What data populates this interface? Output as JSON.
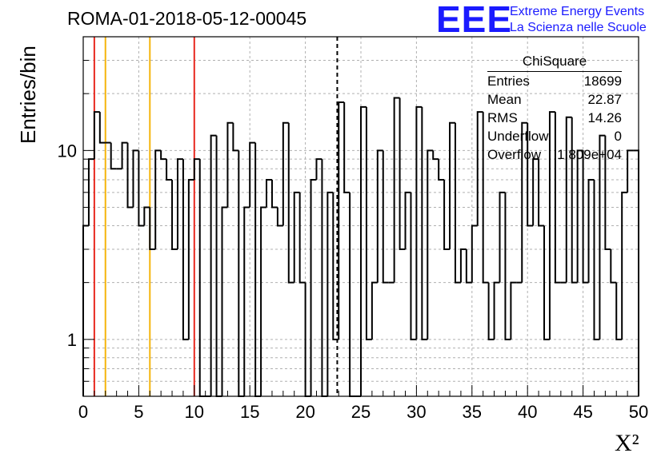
{
  "header": {
    "title": "ROMA-01-2018-05-12-00045"
  },
  "logo": {
    "mark": "EEE",
    "line1": "Extreme Energy Events",
    "line2": "La Scienza nelle Scuole",
    "color": "#1a1aff"
  },
  "stats_box": {
    "title": "ChiSquare",
    "rows": [
      {
        "label": "Entries",
        "value": "18699"
      },
      {
        "label": "Mean",
        "value": "22.87"
      },
      {
        "label": "RMS",
        "value": "14.26"
      },
      {
        "label": "Underflow",
        "value": "0"
      },
      {
        "label": "Overflow",
        "value": "1.809e+04"
      }
    ]
  },
  "chart_data": {
    "type": "histogram",
    "title": "ROMA-01-2018-05-12-00045",
    "xlabel": "X²",
    "ylabel": "Entries/bin",
    "xlim": [
      0,
      50
    ],
    "ylim": [
      0.5,
      40
    ],
    "y_scale": "log",
    "grid": true,
    "bin_width": 0.5,
    "x_ticks": [
      0,
      5,
      10,
      15,
      20,
      25,
      30,
      35,
      40,
      45,
      50
    ],
    "x_tick_labels": [
      "0",
      "5",
      "10",
      "15",
      "20",
      "25",
      "30",
      "35",
      "40",
      "45",
      "50"
    ],
    "y_ticks": [
      1,
      10
    ],
    "y_tick_labels": [
      "1",
      "10"
    ],
    "values": [
      4,
      9,
      16,
      11,
      11,
      8,
      8,
      11,
      5,
      10,
      4,
      5,
      3,
      10,
      9,
      7,
      3,
      9,
      1,
      7,
      9,
      0,
      0,
      12,
      0,
      5,
      14,
      10,
      0,
      5,
      11,
      0,
      5,
      7,
      5,
      4,
      14,
      2,
      6,
      2,
      0,
      7,
      9,
      0,
      6,
      1,
      18,
      6,
      0,
      0,
      17,
      1,
      2,
      10,
      2,
      2,
      19,
      3,
      6,
      1,
      17,
      1,
      10,
      9,
      7,
      3,
      14,
      2,
      3,
      2,
      4,
      16,
      2,
      1,
      2,
      6,
      1,
      2,
      2,
      14,
      4,
      9,
      4,
      1,
      16,
      2,
      2,
      15,
      2,
      10,
      2,
      7,
      1,
      12,
      3,
      2,
      1,
      6,
      10,
      10
    ],
    "vertical_lines": [
      {
        "x": 1,
        "color": "#e8281e",
        "style": "solid"
      },
      {
        "x": 2,
        "color": "#f5b50c",
        "style": "solid"
      },
      {
        "x": 6,
        "color": "#f5b50c",
        "style": "solid"
      },
      {
        "x": 10,
        "color": "#e8281e",
        "style": "solid"
      },
      {
        "x": 22.87,
        "color": "#000000",
        "style": "dashed"
      }
    ]
  }
}
